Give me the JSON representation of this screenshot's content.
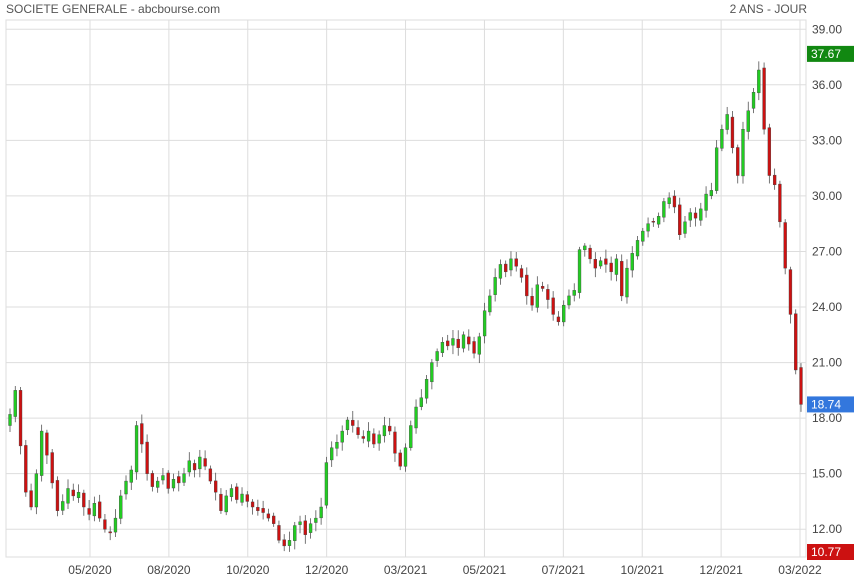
{
  "header": {
    "left": "SOCIETE GENERALE - abcbourse.com",
    "right": "2 ANS - JOUR"
  },
  "colors": {
    "up": "#22cc22",
    "down": "#cc1111",
    "grid": "#dddddd",
    "badge_high": "#118811",
    "badge_last": "#3377dd",
    "badge_low": "#cc1111"
  },
  "chart_data": {
    "type": "candlestick",
    "ylim": [
      10.5,
      39.5
    ],
    "y_ticks": [
      {
        "value": 12,
        "label": "12.00"
      },
      {
        "value": 15,
        "label": "15.00"
      },
      {
        "value": 18,
        "label": "18.00"
      },
      {
        "value": 21,
        "label": "21.00"
      },
      {
        "value": 24,
        "label": "24.00"
      },
      {
        "value": 27,
        "label": "27.00"
      },
      {
        "value": 30,
        "label": "30.00"
      },
      {
        "value": 33,
        "label": "33.00"
      },
      {
        "value": 36,
        "label": "36.00"
      },
      {
        "value": 39,
        "label": "39.00"
      }
    ],
    "x_ticks": [
      "05/2020",
      "08/2020",
      "10/2020",
      "12/2020",
      "03/2021",
      "05/2021",
      "07/2021",
      "10/2021",
      "12/2021",
      "03/2022"
    ],
    "badges": [
      {
        "name": "high",
        "value": 37.67,
        "label": "37.67"
      },
      {
        "name": "last",
        "value": 18.74,
        "label": "18.74"
      },
      {
        "name": "low",
        "value": 10.77,
        "label": "10.77"
      }
    ],
    "closes": [
      18.2,
      19.5,
      16.5,
      14.0,
      13.2,
      15.0,
      17.3,
      16.0,
      14.5,
      13.0,
      13.5,
      14.2,
      13.8,
      14.0,
      13.2,
      12.8,
      13.4,
      12.6,
      12.0,
      11.8,
      12.6,
      13.8,
      14.6,
      15.2,
      17.6,
      16.6,
      15.0,
      14.3,
      14.6,
      14.9,
      14.2,
      14.7,
      14.5,
      15.0,
      15.7,
      15.2,
      15.9,
      15.4,
      14.6,
      14.0,
      13.0,
      13.8,
      14.2,
      13.6,
      13.9,
      13.5,
      13.2,
      13.0,
      12.9,
      12.6,
      12.3,
      11.4,
      11.1,
      11.4,
      12.2,
      12.4,
      11.7,
      12.3,
      12.6,
      13.2,
      15.6,
      16.4,
      16.7,
      17.3,
      17.9,
      17.6,
      17.1,
      16.9,
      17.3,
      16.6,
      17.1,
      17.6,
      17.3,
      16.1,
      15.4,
      16.4,
      17.6,
      18.6,
      19.1,
      20.1,
      21.0,
      21.6,
      22.1,
      21.9,
      22.3,
      21.8,
      22.5,
      22.0,
      21.5,
      22.4,
      23.8,
      24.6,
      25.6,
      26.3,
      25.9,
      26.6,
      26.2,
      25.6,
      24.6,
      24.1,
      25.2,
      25.0,
      24.4,
      23.6,
      23.2,
      24.1,
      24.6,
      24.9,
      27.1,
      27.3,
      26.6,
      26.1,
      26.5,
      26.3,
      25.9,
      26.6,
      24.6,
      26.1,
      26.9,
      27.6,
      28.1,
      28.5,
      28.6,
      28.9,
      29.7,
      29.9,
      29.4,
      27.9,
      28.6,
      29.1,
      28.8,
      29.3,
      30.1,
      30.3,
      32.6,
      33.6,
      34.4,
      32.6,
      31.1,
      33.6,
      34.6,
      35.6,
      36.8,
      33.6,
      31.1,
      30.6,
      28.6,
      26.1,
      23.6,
      20.6,
      18.74
    ]
  }
}
